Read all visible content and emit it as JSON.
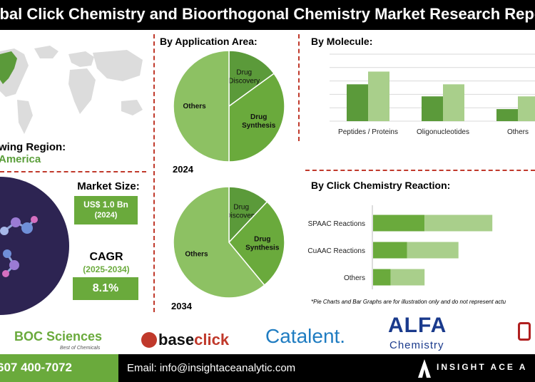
{
  "title": "obal Click Chemistry and Bioorthogonal Chemistry Market Research Repo",
  "region": {
    "label": "wing Region:",
    "value": "America"
  },
  "market_size": {
    "label": "Market Size:",
    "value": "US$ 1.0 Bn",
    "year": "(2024)"
  },
  "cagr": {
    "label": "CAGR",
    "period": "(2025-2034)",
    "value": "8.1%"
  },
  "note": "*Pie Charts and Bar Graphs are for illustration only and do not represent actu",
  "logos": {
    "boc_main": "BOC Sciences",
    "boc_tag": "Best of Chemicals",
    "baseclick_a": "base",
    "baseclick_b": "click",
    "catalent": "Catalent.",
    "alfa_a": "ALFA",
    "alfa_b": "Chemistry"
  },
  "footer": {
    "phone": "607 400-7072",
    "email": "Email: info@insightaceanalytic.com",
    "brand": "INSIGHT ACE A"
  },
  "colors": {
    "dark_green": "#5b9a3a",
    "mid_green": "#6aaa3c",
    "light_green": "#a9cf8b",
    "pie_light": "#8dc163",
    "accent": "#c0392b"
  },
  "chart_data": [
    {
      "type": "pie",
      "title": "By Application Area:",
      "year": "2024",
      "slices": [
        {
          "label": "Drug Discovery",
          "value": 15
        },
        {
          "label": "Drug Synthesis",
          "value": 35
        },
        {
          "label": "Others",
          "value": 50
        }
      ]
    },
    {
      "type": "pie",
      "title": "",
      "year": "2034",
      "slices": [
        {
          "label": "Drug Discovery",
          "value": 12
        },
        {
          "label": "Drug Synthesis",
          "value": 27
        },
        {
          "label": "Others",
          "value": 61
        }
      ]
    },
    {
      "type": "bar",
      "title": "By Molecule:",
      "categories": [
        "Peptides / Proteins",
        "Oligonucleotides",
        "Others"
      ],
      "series": [
        {
          "values": [
            55,
            37,
            18
          ]
        },
        {
          "values": [
            74,
            55,
            37
          ]
        }
      ],
      "ylim": [
        0,
        100
      ],
      "grid": true
    },
    {
      "type": "bar",
      "orientation": "horizontal",
      "title": "By Click Chemistry Reaction:",
      "categories": [
        "SPAAC Reactions",
        "CuAAC Reactions",
        "Others"
      ],
      "series": [
        {
          "values": [
            38,
            25,
            13
          ]
        },
        {
          "values": [
            50,
            38,
            25
          ]
        }
      ],
      "xlim": [
        0,
        120
      ]
    }
  ]
}
